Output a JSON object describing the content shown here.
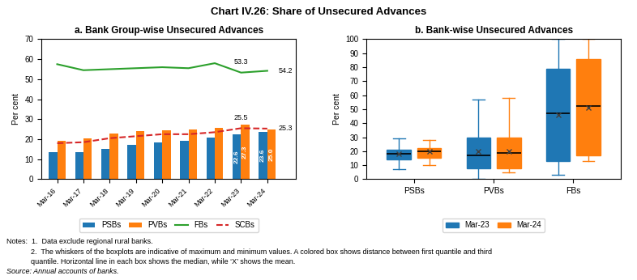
{
  "title": "Chart IV.26: Share of Unsecured Advances",
  "notes": [
    "Notes:  1.  Data exclude regional rural banks.",
    "            2.  The whiskers of the boxplots are indicative of maximum and minimum values. A colored box shows distance between first quantile and third",
    "            quantile. Horizontal line in each box shows the median, while ‘X’ shows the mean."
  ],
  "source": "Source: Annual accounts of banks.",
  "chart_data": [
    {
      "type": "bar",
      "title": "a. Bank Group-wise Unsecured Advances",
      "y_label": "Per cent",
      "categories": [
        "Mar-16",
        "Mar-17",
        "Mar-18",
        "Mar-19",
        "Mar-20",
        "Mar-21",
        "Mar-22",
        "Mar-23",
        "Mar-24"
      ],
      "ylim": [
        0,
        70
      ],
      "yticks": [
        0,
        10,
        20,
        30,
        40,
        50,
        60,
        70
      ],
      "legend": "upper center",
      "series": [
        {
          "name": "PSBs",
          "type": "bar",
          "data_labels": true,
          "values": [
            13.5,
            13.5,
            15.0,
            17.0,
            18.5,
            19.0,
            21.0,
            22.6,
            23.6
          ],
          "value_labels": [
            null,
            null,
            null,
            null,
            null,
            null,
            null,
            "22.6",
            "23.6"
          ]
        },
        {
          "name": "PVBs",
          "type": "bar",
          "data_labels": true,
          "values": [
            19.0,
            20.5,
            23.0,
            24.0,
            24.5,
            25.0,
            25.5,
            27.3,
            25.0
          ],
          "value_labels": [
            null,
            null,
            null,
            null,
            null,
            null,
            null,
            "27.3",
            "25.0"
          ]
        },
        {
          "name": "FBs",
          "type": "line",
          "line_style": "solid",
          "data_labels": true,
          "values": [
            57.5,
            54.5,
            55.0,
            55.5,
            56.0,
            55.5,
            58.0,
            53.3,
            54.2
          ],
          "value_labels": [
            null,
            null,
            null,
            null,
            null,
            null,
            null,
            "53.3",
            "54.2"
          ]
        },
        {
          "name": "SCBs",
          "type": "line",
          "line_style": "dashed",
          "data_labels": true,
          "values": [
            18.0,
            18.5,
            20.5,
            21.5,
            22.5,
            22.5,
            23.5,
            25.5,
            25.3
          ],
          "value_labels": [
            null,
            null,
            null,
            null,
            null,
            null,
            null,
            "25.5",
            "25.3"
          ]
        }
      ]
    },
    {
      "type": "box",
      "title": "b. Bank-wise Unsecured Advances",
      "y_label": "Per cent",
      "categories": [
        "PSBs",
        "PVBs",
        "FBs"
      ],
      "ylim": [
        0,
        100
      ],
      "yticks": [
        0,
        10,
        20,
        30,
        40,
        50,
        60,
        70,
        80,
        90,
        100
      ],
      "legend": "upper center",
      "series": [
        {
          "name": "Mar-23",
          "boxes": [
            {
              "whislo": 7,
              "q1": 14,
              "med": 18,
              "q3": 21,
              "whishi": 29,
              "mean": 18
            },
            {
              "whislo": 0,
              "q1": 8,
              "med": 17,
              "q3": 30,
              "whishi": 57,
              "mean": 20
            },
            {
              "whislo": 3,
              "q1": 13,
              "med": 47,
              "q3": 79,
              "whishi": 100,
              "mean": 46
            }
          ]
        },
        {
          "name": "Mar-24",
          "boxes": [
            {
              "whislo": 10,
              "q1": 15,
              "med": 20,
              "q3": 22,
              "whishi": 28,
              "mean": 20
            },
            {
              "whislo": 5,
              "q1": 8,
              "med": 19,
              "q3": 30,
              "whishi": 58,
              "mean": 20
            },
            {
              "whislo": 13,
              "q1": 17,
              "med": 52,
              "q3": 86,
              "whishi": 100,
              "mean": 51
            }
          ]
        }
      ]
    }
  ]
}
